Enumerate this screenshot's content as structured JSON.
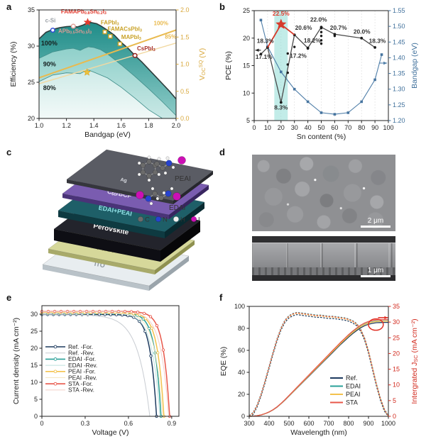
{
  "colors": {
    "accent_teal": "#2aa098",
    "accent_gold": "#e9ba4e",
    "accent_red": "#e23b2e",
    "accent_navy": "#1d3a5f",
    "accent_blue": "#41719c",
    "contour_dark": "#1e8c88",
    "contour_light": "#f6fbfa"
  },
  "panels": {
    "a": {
      "letter": "a"
    },
    "b": {
      "letter": "b"
    },
    "c": {
      "letter": "c",
      "layers": [
        {
          "label": "ITO",
          "top": "#e8edf0",
          "side": "#b9c2c8",
          "side2": "#9aa4ab",
          "label_color": "#8a949b",
          "thickness": 7
        },
        {
          "label": "PTAA",
          "top": "#d6d89a",
          "side": "#a8aa6a",
          "side2": "#8f914f",
          "label_color": "#94964f",
          "thickness": 6
        },
        {
          "label": "Perovskite",
          "top": "#23242c",
          "side": "#0e0e14",
          "side2": "#070709",
          "label_color": "#ffffff",
          "thickness": 16
        },
        {
          "label": "EDAI+PEAI",
          "top": "#1e5f68",
          "side": "#0e3a41",
          "side2": "#082a30",
          "label_color": "#8fe0e6",
          "thickness": 9
        },
        {
          "label": "C~60~/BCP",
          "top": "#7a5cb0",
          "side": "#4a3378",
          "side2": "#382560",
          "label_color": "#ece6f8",
          "thickness": 6
        },
        {
          "label": "Ag",
          "top": "#5a5c64",
          "side": "#35363c",
          "side2": "#26272c",
          "label_color": "#d5d8de",
          "thickness": 5
        }
      ],
      "molecules": [
        {
          "label": "PEAI"
        },
        {
          "label": "EDAI"
        }
      ],
      "atom_legend": [
        {
          "symbol": "C",
          "color": "#6b6b6b"
        },
        {
          "symbol": "N",
          "color": "#2743cf"
        },
        {
          "symbol": "H",
          "color": "#f0f0f0"
        },
        {
          "symbol": "I",
          "color": "#cc10b5"
        }
      ]
    },
    "d": {
      "letter": "d",
      "scale_top": "2 μm",
      "scale_bottom": "1 μm"
    },
    "e": {
      "letter": "e"
    },
    "f": {
      "letter": "f"
    }
  },
  "chart_data": [
    {
      "panel": "a",
      "type": "area",
      "xlabel": "Bandgap (eV)",
      "ylabel": "Efficiency (%)",
      "y2label": "V~OC~^SQ^ (V)",
      "xlim": [
        1.0,
        2.0
      ],
      "ylim": [
        20,
        35
      ],
      "y2lim": [
        0,
        2
      ],
      "xticks": [
        1.0,
        1.2,
        1.4,
        1.6,
        1.8,
        2.0
      ],
      "xticklabels": [
        "1.0",
        "1.2",
        "1.4",
        "1.6",
        "1.8",
        "2.0"
      ],
      "yticks": [
        20,
        25,
        30,
        35
      ],
      "y2ticks": [
        0.0,
        0.5,
        1.0,
        1.5,
        2.0
      ],
      "y2ticklabels": [
        "0.0",
        "0.5",
        "1.0",
        "1.5",
        "2.0"
      ],
      "bands": [
        {
          "label": "100%",
          "points": [
            [
              1.0,
              31.0
            ],
            [
              1.05,
              31.9
            ],
            [
              1.1,
              32.3
            ],
            [
              1.15,
              32.55
            ],
            [
              1.2,
              32.7
            ],
            [
              1.25,
              32.75
            ],
            [
              1.28,
              32.65
            ],
            [
              1.32,
              32.9
            ],
            [
              1.35,
              33.2
            ],
            [
              1.38,
              33.25
            ],
            [
              1.42,
              33.1
            ],
            [
              1.45,
              32.8
            ],
            [
              1.5,
              32.2
            ],
            [
              1.55,
              31.5
            ],
            [
              1.6,
              30.5
            ],
            [
              1.65,
              29.7
            ],
            [
              1.7,
              28.7
            ],
            [
              1.75,
              27.8
            ],
            [
              1.8,
              26.8
            ],
            [
              1.85,
              25.8
            ],
            [
              1.9,
              24.8
            ],
            [
              1.95,
              23.8
            ],
            [
              2.0,
              22.7
            ]
          ]
        },
        {
          "label": "90%",
          "points": [
            [
              1.0,
              28.3
            ],
            [
              1.1,
              29.2
            ],
            [
              1.2,
              29.6
            ],
            [
              1.25,
              29.7
            ],
            [
              1.3,
              29.4
            ],
            [
              1.33,
              29.7
            ],
            [
              1.36,
              29.9
            ],
            [
              1.4,
              29.8
            ],
            [
              1.45,
              29.5
            ],
            [
              1.5,
              28.9
            ],
            [
              1.6,
              27.4
            ],
            [
              1.7,
              25.8
            ],
            [
              1.8,
              24.1
            ],
            [
              1.9,
              22.3
            ],
            [
              2.0,
              20.4
            ]
          ]
        },
        {
          "label": "80%",
          "points": [
            [
              1.0,
              25.1
            ],
            [
              1.1,
              26.0
            ],
            [
              1.2,
              26.3
            ],
            [
              1.3,
              26.2
            ],
            [
              1.33,
              26.5
            ],
            [
              1.36,
              26.7
            ],
            [
              1.4,
              26.4
            ],
            [
              1.5,
              25.6
            ],
            [
              1.6,
              24.3
            ],
            [
              1.7,
              22.8
            ],
            [
              1.8,
              21.2
            ],
            [
              1.9,
              20.0
            ],
            [
              1.95,
              19.3
            ]
          ]
        }
      ],
      "band_labels": [
        {
          "text": "100%",
          "x": 1.015,
          "y": 30.1
        },
        {
          "text": "90%",
          "x": 1.03,
          "y": 27.2
        },
        {
          "text": "80%",
          "x": 1.03,
          "y": 23.9
        }
      ],
      "voc_lines": [
        {
          "label": "100%",
          "from": [
            1.0,
            0.75
          ],
          "to": [
            2.0,
            1.63
          ],
          "label_pos": [
            1.89,
            1.72
          ],
          "strong": true
        },
        {
          "label": "85%",
          "from": [
            1.0,
            0.64
          ],
          "to": [
            2.0,
            1.39
          ],
          "label_pos": [
            1.96,
            1.47
          ],
          "strong": false
        }
      ],
      "voc_star": {
        "x": 1.35,
        "y": 0.85
      },
      "points": [
        {
          "label": "c-Si",
          "x": 1.1,
          "y": 32.2,
          "marker": "circle",
          "color": "#2f4bd6",
          "label_color": "#9aa0a6",
          "lx": 1.045,
          "ly": 33.3
        },
        {
          "label": "APb~0.5~Sn~0.5~I~3~",
          "x": 1.25,
          "y": 32.75,
          "marker": "circle",
          "color": "#e4a29a",
          "label_color": "#dc9c94",
          "lx": 1.14,
          "ly": 31.8
        },
        {
          "label": "FAMAPb~0.8~Sn~0.2~I~3~",
          "x": 1.355,
          "y": 33.3,
          "marker": "star",
          "color": "#e23b2e",
          "label_color": "#e23b2e",
          "lx": 1.16,
          "ly": 34.5
        },
        {
          "label": "FAPbI~3~",
          "x": 1.48,
          "y": 31.95,
          "marker": "square",
          "color": "#c9a227",
          "label_color": "#c9a227",
          "lx": 1.45,
          "ly": 33.0
        },
        {
          "label": "FAMACsPbI~3~",
          "x": 1.52,
          "y": 31.35,
          "marker": "square",
          "color": "#c9a227",
          "label_color": "#c9a227",
          "lx": 1.5,
          "ly": 32.1
        },
        {
          "label": "MAPbI~3~",
          "x": 1.59,
          "y": 30.3,
          "marker": "square",
          "color": "#c9a227",
          "label_color": "#c9a227",
          "lx": 1.6,
          "ly": 31.0
        },
        {
          "label": "CsPbI~3~",
          "x": 1.7,
          "y": 28.7,
          "marker": "circle",
          "color": "#8f1d18",
          "label_color": "#a8322a",
          "lx": 1.715,
          "ly": 29.4
        }
      ]
    },
    {
      "panel": "b",
      "type": "line",
      "xlabel": "Sn content (%)",
      "ylabel": "PCE (%)",
      "y2label": "Bandgap (eV)",
      "xlim": [
        0,
        100
      ],
      "ylim": [
        5,
        25
      ],
      "y2lim": [
        1.2,
        1.55
      ],
      "xticks": [
        0,
        10,
        20,
        30,
        40,
        50,
        60,
        70,
        80,
        90,
        100
      ],
      "yticks": [
        5,
        10,
        15,
        20,
        25
      ],
      "y2ticks": [
        1.2,
        1.25,
        1.3,
        1.35,
        1.4,
        1.45,
        1.5,
        1.55
      ],
      "y2ticklabels": [
        "1.20",
        "1.25",
        "1.30",
        "1.35",
        "1.40",
        "1.45",
        "1.50",
        "1.55"
      ],
      "highlight_band": [
        15,
        25
      ],
      "pce_line": [
        [
          5,
          17.1
        ],
        [
          10,
          18.3
        ],
        [
          20,
          8.3
        ],
        [
          30,
          20.6
        ],
        [
          40,
          18.2
        ],
        [
          50,
          22.0
        ],
        [
          60,
          20.7
        ],
        [
          80,
          20.0
        ],
        [
          90,
          18.3
        ]
      ],
      "pce_scatter": [
        [
          25,
          17.2
        ],
        [
          25,
          15.2
        ],
        [
          25,
          13.7
        ],
        [
          30,
          18.4
        ],
        [
          40,
          18.1
        ],
        [
          50,
          19.0
        ],
        [
          50,
          19.6
        ],
        [
          50,
          20.4
        ],
        [
          50,
          21.1
        ],
        [
          50,
          21.8
        ],
        [
          60,
          20.4
        ]
      ],
      "red_line": [
        [
          10,
          18.3
        ],
        [
          20,
          22.5
        ],
        [
          30,
          20.6
        ]
      ],
      "red_star": [
        20,
        22.5
      ],
      "bandgap_line": [
        [
          5,
          1.52
        ],
        [
          10,
          1.435
        ],
        [
          20,
          1.355
        ],
        [
          30,
          1.3
        ],
        [
          40,
          1.26
        ],
        [
          50,
          1.225
        ],
        [
          60,
          1.22
        ],
        [
          70,
          1.225
        ],
        [
          80,
          1.26
        ],
        [
          90,
          1.33
        ],
        [
          95,
          1.41
        ]
      ],
      "labels": [
        {
          "text": "22.5%",
          "x": 20,
          "y": 24.1,
          "color": "#e23b2e",
          "anchor": "middle"
        },
        {
          "text": "18.3%",
          "x": 2,
          "y": 19.1,
          "color": "#333333",
          "anchor": "start"
        },
        {
          "text": "17.1%",
          "x": 1,
          "y": 16.2,
          "color": "#333333",
          "anchor": "start"
        },
        {
          "text": "8.3%",
          "x": 20,
          "y": 7.0,
          "color": "#333333",
          "anchor": "middle"
        },
        {
          "text": "17.2%",
          "x": 26.5,
          "y": 16.4,
          "color": "#333333",
          "anchor": "start"
        },
        {
          "text": "20.6%",
          "x": 30.5,
          "y": 21.5,
          "color": "#333333",
          "anchor": "start"
        },
        {
          "text": "18.2%",
          "x": 37,
          "y": 19.2,
          "color": "#333333",
          "anchor": "start"
        },
        {
          "text": "22.0%",
          "x": 48,
          "y": 23.0,
          "color": "#333333",
          "anchor": "middle"
        },
        {
          "text": "20.7%",
          "x": 56.5,
          "y": 21.5,
          "color": "#333333",
          "anchor": "start"
        },
        {
          "text": "20.0%",
          "x": 74,
          "y": 20.8,
          "color": "#333333",
          "anchor": "start"
        },
        {
          "text": "18.3%",
          "x": 85.5,
          "y": 19.1,
          "color": "#333333",
          "anchor": "start"
        }
      ],
      "arrow_left_y": 17.8,
      "arrow_right_y2": 1.383
    },
    {
      "panel": "e",
      "type": "line",
      "xlabel": "Voltage (V)",
      "ylabel": "Current density (mA cm⁻²)",
      "xlim": [
        0,
        0.95
      ],
      "ylim": [
        0,
        32.5
      ],
      "xticks": [
        0,
        0.3,
        0.6,
        0.9
      ],
      "xticklabels": [
        "0",
        "0.3",
        "0.6",
        "0.9"
      ],
      "yticks": [
        0,
        5,
        10,
        15,
        20,
        25,
        30
      ],
      "curves": [
        {
          "name": "Ref. -For.",
          "color": "#1d3a5f",
          "marker": true,
          "jsc": 29.9,
          "voc": 0.795,
          "k": 18
        },
        {
          "name": "Ref. -Rev.",
          "color": "#c8ccd2",
          "marker": false,
          "jsc": 29.85,
          "voc": 0.748,
          "k": 9
        },
        {
          "name": "EDAI -For.",
          "color": "#2aa098",
          "marker": true,
          "jsc": 30.35,
          "voc": 0.826,
          "k": 19
        },
        {
          "name": "EDAI -Rev.",
          "color": "#bfe0de",
          "marker": false,
          "jsc": 30.3,
          "voc": 0.818,
          "k": 15
        },
        {
          "name": "PEAI -For.",
          "color": "#f3c24d",
          "marker": true,
          "jsc": 30.45,
          "voc": 0.846,
          "k": 19
        },
        {
          "name": "PEAI -Rev.",
          "color": "#f6e7c0",
          "marker": false,
          "jsc": 30.4,
          "voc": 0.838,
          "k": 15
        },
        {
          "name": "STA -For.",
          "color": "#e8574a",
          "marker": true,
          "jsc": 30.8,
          "voc": 0.886,
          "k": 20
        },
        {
          "name": "STA -Rev.",
          "color": "#f3cfc8",
          "marker": false,
          "jsc": 30.75,
          "voc": 0.879,
          "k": 16
        }
      ]
    },
    {
      "panel": "f",
      "type": "line",
      "xlabel": "Wavelength (nm)",
      "ylabel": "EQE (%)",
      "y2label": "Intergrated J~SC~ (mA cm⁻²)",
      "xlim": [
        300,
        1000
      ],
      "ylim": [
        0,
        100
      ],
      "y2lim": [
        0,
        35
      ],
      "xticks": [
        300,
        400,
        500,
        600,
        700,
        800,
        900,
        1000
      ],
      "yticks": [
        0,
        20,
        40,
        60,
        80,
        100
      ],
      "y2ticks": [
        0,
        5,
        10,
        15,
        20,
        25,
        30,
        35
      ],
      "x": [
        300,
        320,
        340,
        360,
        380,
        400,
        420,
        440,
        460,
        480,
        500,
        520,
        540,
        560,
        580,
        600,
        620,
        640,
        660,
        680,
        700,
        720,
        740,
        760,
        780,
        800,
        820,
        840,
        860,
        880,
        900,
        920,
        940,
        960,
        980,
        1000
      ],
      "eqe_base": [
        0,
        3,
        10,
        20,
        32,
        45,
        58,
        70,
        80,
        87,
        91,
        93,
        94,
        93.5,
        93,
        92.5,
        92,
        91.5,
        91.5,
        91,
        90.5,
        90.5,
        90,
        89.5,
        89,
        88,
        86.5,
        84,
        79,
        71,
        59,
        44,
        29,
        16,
        6,
        0
      ],
      "jsc_base": [
        0,
        0.05,
        0.2,
        0.45,
        0.85,
        1.4,
        2.1,
        3.0,
        4.1,
        5.3,
        6.6,
        7.9,
        9.2,
        10.5,
        11.8,
        13.1,
        14.4,
        15.7,
        17.0,
        18.3,
        19.6,
        20.9,
        22.2,
        23.5,
        24.7,
        25.9,
        27.0,
        28.0,
        28.9,
        29.6,
        30.1,
        30.4,
        30.6,
        30.65,
        30.7,
        30.7
      ],
      "series": [
        {
          "name": "Ref.",
          "color": "#1d3a5f",
          "eqe_dy": -1.5,
          "jsc_final": 29.9
        },
        {
          "name": "EDAI",
          "color": "#2aa098",
          "eqe_dy": 0.6,
          "jsc_final": 30.4
        },
        {
          "name": "PEAI",
          "color": "#f3c24d",
          "eqe_dy": -0.3,
          "jsc_final": 30.3
        },
        {
          "name": "STA",
          "color": "#e8574a",
          "eqe_dy": 0.2,
          "jsc_final": 30.8
        }
      ],
      "ellipse": {
        "cx_nm": 937,
        "cy_jsc": 29.2
      },
      "arrow": {
        "from_nm": 948,
        "to_nm": 998,
        "y_jsc": 31.4
      }
    }
  ]
}
